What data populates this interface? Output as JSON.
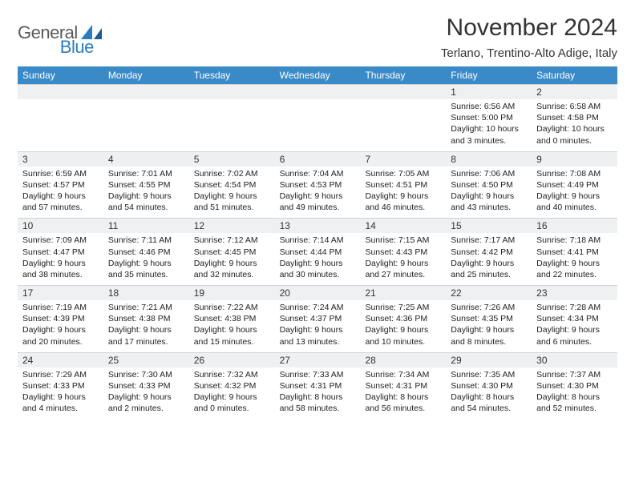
{
  "logo": {
    "text1": "General",
    "text2": "Blue"
  },
  "title": "November 2024",
  "location": "Terlano, Trentino-Alto Adige, Italy",
  "colors": {
    "header_bg": "#3a8ac8",
    "header_text": "#ffffff",
    "daynum_bg": "#eef0f2",
    "border": "#cfd4da",
    "logo_gray": "#5a5a5a",
    "logo_blue": "#2b7bbf"
  },
  "fonts": {
    "title_size": 30,
    "location_size": 15,
    "dow_size": 12,
    "daynum_size": 12,
    "info_size": 10.5
  },
  "dow": [
    "Sunday",
    "Monday",
    "Tuesday",
    "Wednesday",
    "Thursday",
    "Friday",
    "Saturday"
  ],
  "weeks": [
    [
      {
        "empty": true
      },
      {
        "empty": true
      },
      {
        "empty": true
      },
      {
        "empty": true
      },
      {
        "empty": true
      },
      {
        "n": "1",
        "sr": "6:56 AM",
        "ss": "5:00 PM",
        "dl": "10 hours and 3 minutes."
      },
      {
        "n": "2",
        "sr": "6:58 AM",
        "ss": "4:58 PM",
        "dl": "10 hours and 0 minutes."
      }
    ],
    [
      {
        "n": "3",
        "sr": "6:59 AM",
        "ss": "4:57 PM",
        "dl": "9 hours and 57 minutes."
      },
      {
        "n": "4",
        "sr": "7:01 AM",
        "ss": "4:55 PM",
        "dl": "9 hours and 54 minutes."
      },
      {
        "n": "5",
        "sr": "7:02 AM",
        "ss": "4:54 PM",
        "dl": "9 hours and 51 minutes."
      },
      {
        "n": "6",
        "sr": "7:04 AM",
        "ss": "4:53 PM",
        "dl": "9 hours and 49 minutes."
      },
      {
        "n": "7",
        "sr": "7:05 AM",
        "ss": "4:51 PM",
        "dl": "9 hours and 46 minutes."
      },
      {
        "n": "8",
        "sr": "7:06 AM",
        "ss": "4:50 PM",
        "dl": "9 hours and 43 minutes."
      },
      {
        "n": "9",
        "sr": "7:08 AM",
        "ss": "4:49 PM",
        "dl": "9 hours and 40 minutes."
      }
    ],
    [
      {
        "n": "10",
        "sr": "7:09 AM",
        "ss": "4:47 PM",
        "dl": "9 hours and 38 minutes."
      },
      {
        "n": "11",
        "sr": "7:11 AM",
        "ss": "4:46 PM",
        "dl": "9 hours and 35 minutes."
      },
      {
        "n": "12",
        "sr": "7:12 AM",
        "ss": "4:45 PM",
        "dl": "9 hours and 32 minutes."
      },
      {
        "n": "13",
        "sr": "7:14 AM",
        "ss": "4:44 PM",
        "dl": "9 hours and 30 minutes."
      },
      {
        "n": "14",
        "sr": "7:15 AM",
        "ss": "4:43 PM",
        "dl": "9 hours and 27 minutes."
      },
      {
        "n": "15",
        "sr": "7:17 AM",
        "ss": "4:42 PM",
        "dl": "9 hours and 25 minutes."
      },
      {
        "n": "16",
        "sr": "7:18 AM",
        "ss": "4:41 PM",
        "dl": "9 hours and 22 minutes."
      }
    ],
    [
      {
        "n": "17",
        "sr": "7:19 AM",
        "ss": "4:39 PM",
        "dl": "9 hours and 20 minutes."
      },
      {
        "n": "18",
        "sr": "7:21 AM",
        "ss": "4:38 PM",
        "dl": "9 hours and 17 minutes."
      },
      {
        "n": "19",
        "sr": "7:22 AM",
        "ss": "4:38 PM",
        "dl": "9 hours and 15 minutes."
      },
      {
        "n": "20",
        "sr": "7:24 AM",
        "ss": "4:37 PM",
        "dl": "9 hours and 13 minutes."
      },
      {
        "n": "21",
        "sr": "7:25 AM",
        "ss": "4:36 PM",
        "dl": "9 hours and 10 minutes."
      },
      {
        "n": "22",
        "sr": "7:26 AM",
        "ss": "4:35 PM",
        "dl": "9 hours and 8 minutes."
      },
      {
        "n": "23",
        "sr": "7:28 AM",
        "ss": "4:34 PM",
        "dl": "9 hours and 6 minutes."
      }
    ],
    [
      {
        "n": "24",
        "sr": "7:29 AM",
        "ss": "4:33 PM",
        "dl": "9 hours and 4 minutes."
      },
      {
        "n": "25",
        "sr": "7:30 AM",
        "ss": "4:33 PM",
        "dl": "9 hours and 2 minutes."
      },
      {
        "n": "26",
        "sr": "7:32 AM",
        "ss": "4:32 PM",
        "dl": "9 hours and 0 minutes."
      },
      {
        "n": "27",
        "sr": "7:33 AM",
        "ss": "4:31 PM",
        "dl": "8 hours and 58 minutes."
      },
      {
        "n": "28",
        "sr": "7:34 AM",
        "ss": "4:31 PM",
        "dl": "8 hours and 56 minutes."
      },
      {
        "n": "29",
        "sr": "7:35 AM",
        "ss": "4:30 PM",
        "dl": "8 hours and 54 minutes."
      },
      {
        "n": "30",
        "sr": "7:37 AM",
        "ss": "4:30 PM",
        "dl": "8 hours and 52 minutes."
      }
    ]
  ],
  "labels": {
    "sunrise": "Sunrise: ",
    "sunset": "Sunset: ",
    "daylight": "Daylight: "
  }
}
